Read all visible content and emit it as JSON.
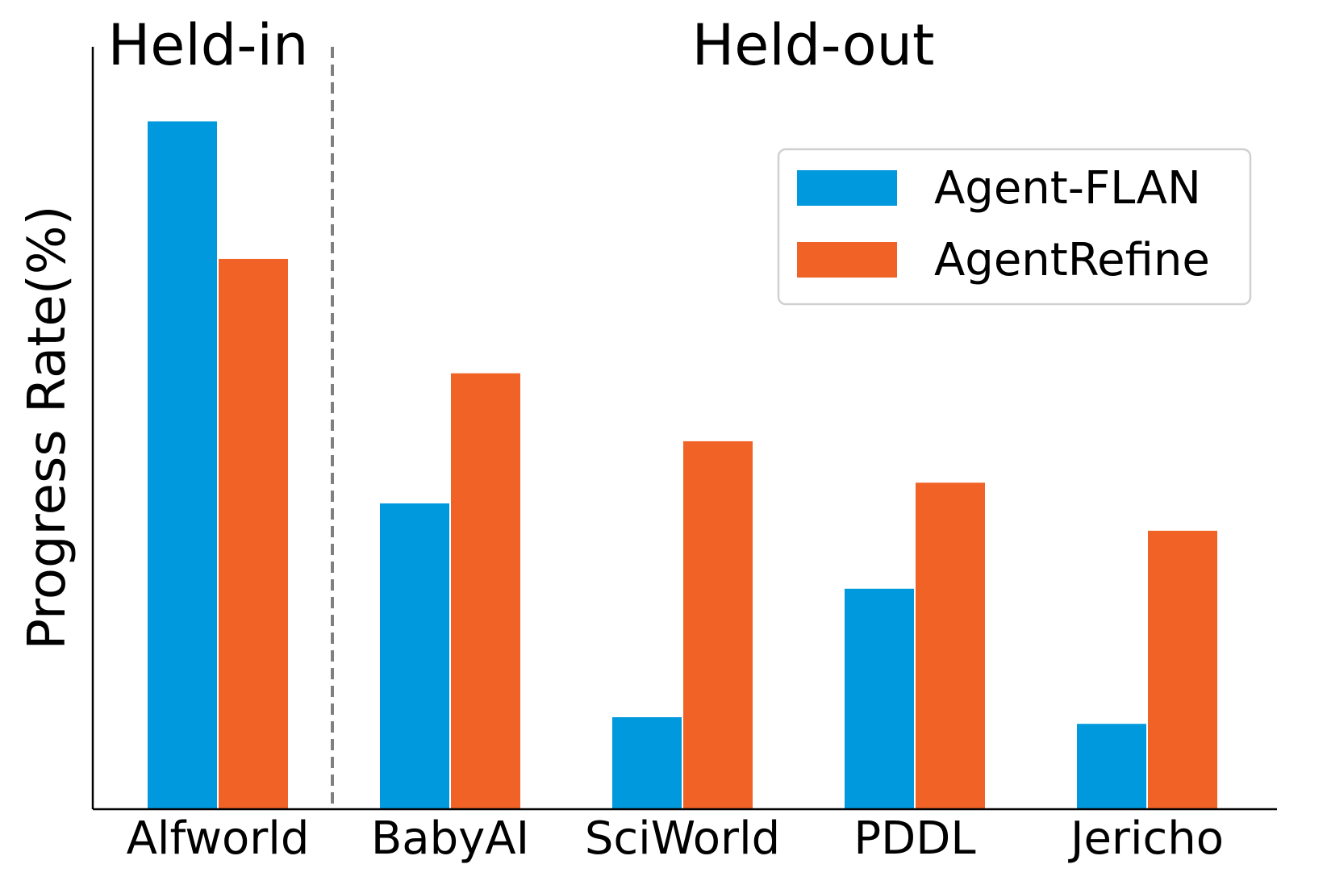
{
  "chart_data": {
    "type": "bar",
    "categories": [
      "Alfworld",
      "BabyAI",
      "SciWorld",
      "PDDL",
      "Jericho"
    ],
    "series": [
      {
        "name": "Agent-FLAN",
        "color": "#0099dd",
        "values": [
          83.0,
          36.9,
          11.1,
          26.6,
          10.3
        ]
      },
      {
        "name": "AgentRefine",
        "color": "#f06226",
        "values": [
          66.4,
          52.6,
          44.4,
          39.4,
          33.6
        ]
      }
    ],
    "group_labels": [
      "Held-in",
      "Held-out"
    ],
    "title": "",
    "xlabel": "",
    "ylabel": "Progress Rate(%)",
    "ylim": [
      0,
      92
    ],
    "grid": false,
    "legend_position": "top-right",
    "divider_after_category": "Alfworld",
    "divider_style": "dashed"
  }
}
